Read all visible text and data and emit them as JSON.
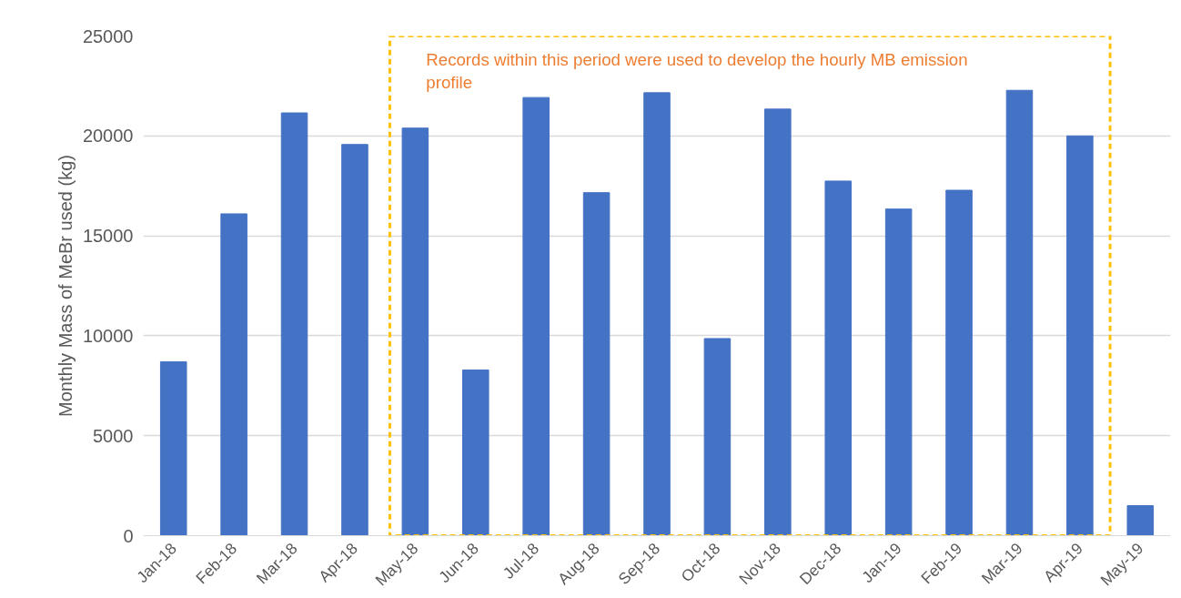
{
  "chart_data": {
    "type": "bar",
    "ylabel": "Monthly Mass of MeBr used (kg)",
    "categories": [
      "Jan-18",
      "Feb-18",
      "Mar-18",
      "Apr-18",
      "May-18",
      "Jun-18",
      "Jul-18",
      "Aug-18",
      "Sep-18",
      "Oct-18",
      "Nov-18",
      "Dec-18",
      "Jan-19",
      "Feb-19",
      "Mar-19",
      "Apr-19",
      "May-19"
    ],
    "values": [
      8700,
      16100,
      21150,
      19570,
      20390,
      8290,
      21920,
      17160,
      22160,
      9860,
      21340,
      17740,
      16340,
      17280,
      22280,
      20000,
      1500
    ],
    "color": "#4472c4",
    "ylim": [
      0,
      25000
    ],
    "yticks": [
      0,
      5000,
      10000,
      15000,
      20000,
      25000
    ],
    "grid": "y",
    "annotations": [
      "Records within this period were used to develop the hourly MB emission profile"
    ]
  }
}
